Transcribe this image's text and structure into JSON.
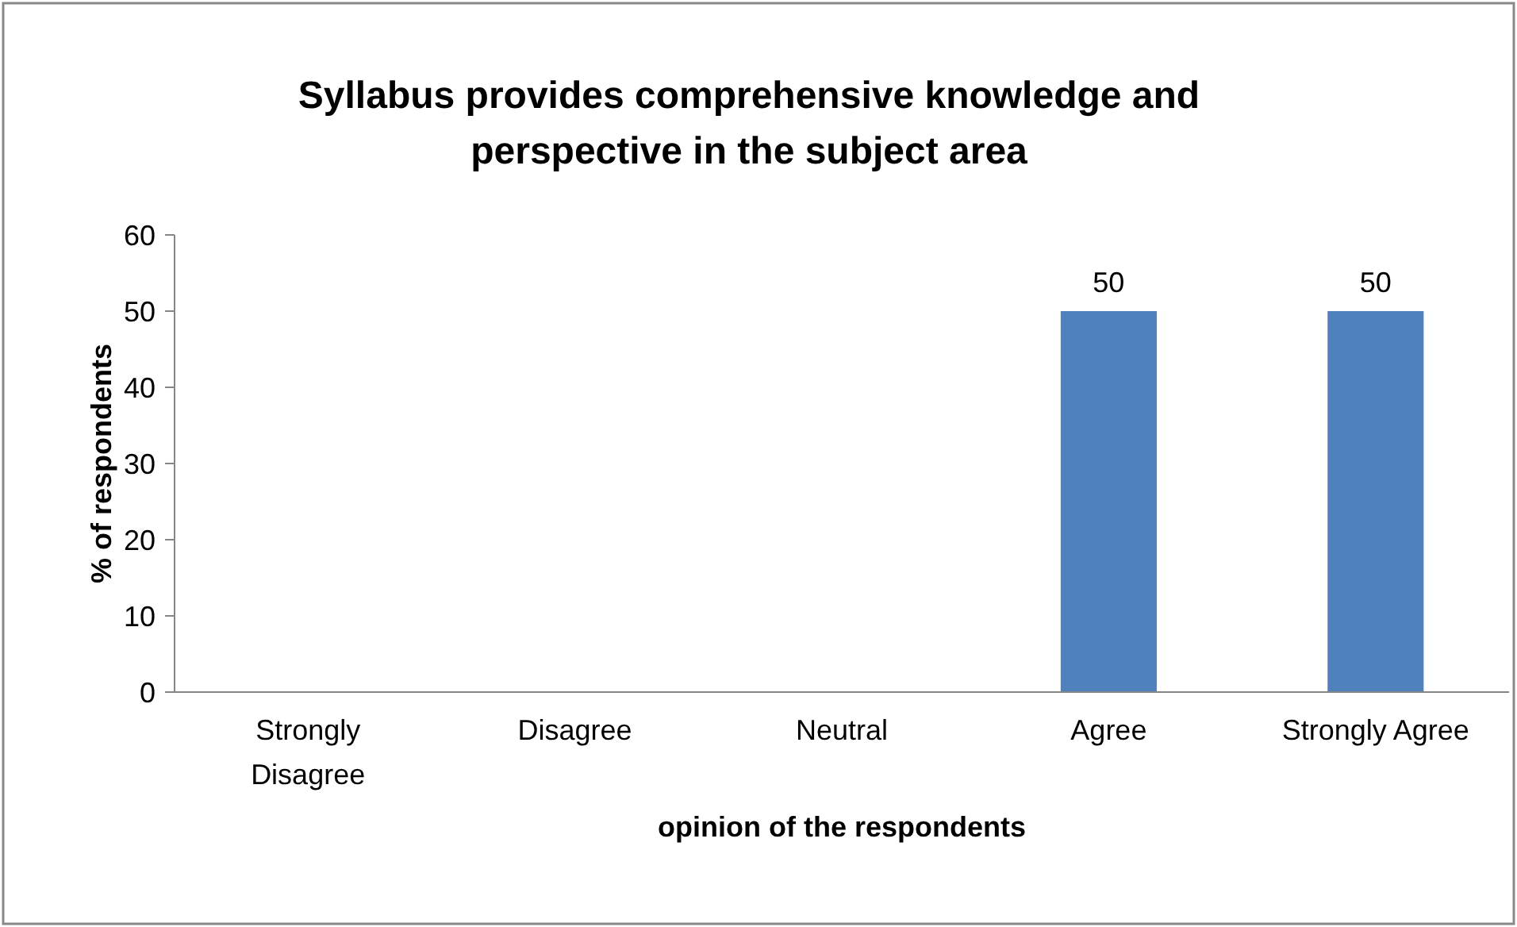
{
  "chart_data": {
    "type": "bar",
    "title": "Syllabus provides comprehensive knowledge and perspective in the subject area",
    "xlabel": "opinion of the respondents",
    "ylabel": "% of respondents",
    "categories": [
      "Strongly Disagree",
      "Disagree",
      "Neutral",
      "Agree",
      "Strongly Agree"
    ],
    "values": [
      0,
      0,
      0,
      50,
      50
    ],
    "value_labels": [
      null,
      null,
      null,
      "50",
      "50"
    ],
    "color": "#4f81bd",
    "ylim": [
      0,
      60
    ],
    "yticks": [
      0,
      10,
      20,
      30,
      40,
      50,
      60
    ]
  }
}
